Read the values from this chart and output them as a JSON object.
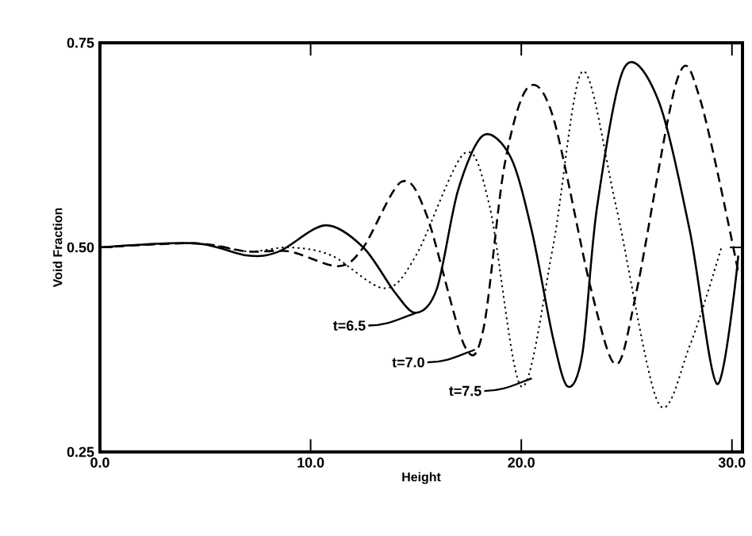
{
  "chart_data": {
    "type": "line",
    "xlabel": "Height",
    "ylabel": "Void Fraction",
    "xlim": [
      0,
      30.5
    ],
    "ylim": [
      0.25,
      0.75
    ],
    "xticks": [
      {
        "value": 0,
        "label": "0.0"
      },
      {
        "value": 10,
        "label": "10.0"
      },
      {
        "value": 20,
        "label": "20.0"
      },
      {
        "value": 30,
        "label": "30.0"
      }
    ],
    "yticks": [
      {
        "value": 0.25,
        "label": "0.25"
      },
      {
        "value": 0.5,
        "label": "0.50"
      },
      {
        "value": 0.75,
        "label": "0.75"
      }
    ],
    "marker": "none",
    "series": [
      {
        "color": "#000000",
        "line_style": "solid",
        "x": [
          0,
          4.5,
          7,
          8.5,
          10.7,
          12.5,
          14,
          15,
          16,
          17,
          18.2,
          19.5,
          20.5,
          21.5,
          22.2,
          22.9,
          23.6,
          24.9,
          26.5,
          28,
          29.3,
          30.3
        ],
        "values": [
          0.5,
          0.505,
          0.49,
          0.495,
          0.527,
          0.5,
          0.445,
          0.42,
          0.45,
          0.57,
          0.637,
          0.61,
          0.52,
          0.39,
          0.33,
          0.37,
          0.55,
          0.72,
          0.68,
          0.52,
          0.333,
          0.49
        ]
      },
      {
        "color": "#000000",
        "line_style": "dashed",
        "x": [
          0,
          4.5,
          7,
          9,
          11.3,
          12.5,
          14.3,
          15.5,
          17.3,
          18.2,
          19.2,
          20.3,
          21.5,
          23.3,
          24.5,
          25.5,
          27.4,
          28.5,
          30.3
        ],
        "values": [
          0.5,
          0.505,
          0.495,
          0.495,
          0.477,
          0.5,
          0.58,
          0.54,
          0.38,
          0.4,
          0.6,
          0.695,
          0.66,
          0.45,
          0.357,
          0.45,
          0.705,
          0.68,
          0.47
        ]
      },
      {
        "color": "#000000",
        "line_style": "dotted",
        "x": [
          0,
          4.5,
          7,
          9,
          11,
          13.5,
          15,
          17.3,
          18.5,
          20,
          21.5,
          22.9,
          24.5,
          26.5,
          28,
          29.5
        ],
        "values": [
          0.5,
          0.505,
          0.495,
          0.5,
          0.49,
          0.45,
          0.49,
          0.615,
          0.55,
          0.33,
          0.5,
          0.715,
          0.55,
          0.31,
          0.38,
          0.5
        ]
      }
    ],
    "annotations": [
      {
        "text": "t=6.5",
        "x": 15.0,
        "y": 0.42
      },
      {
        "text": "t=7.0",
        "x": 17.8,
        "y": 0.375
      },
      {
        "text": "t=7.5",
        "x": 20.5,
        "y": 0.34
      }
    ]
  }
}
